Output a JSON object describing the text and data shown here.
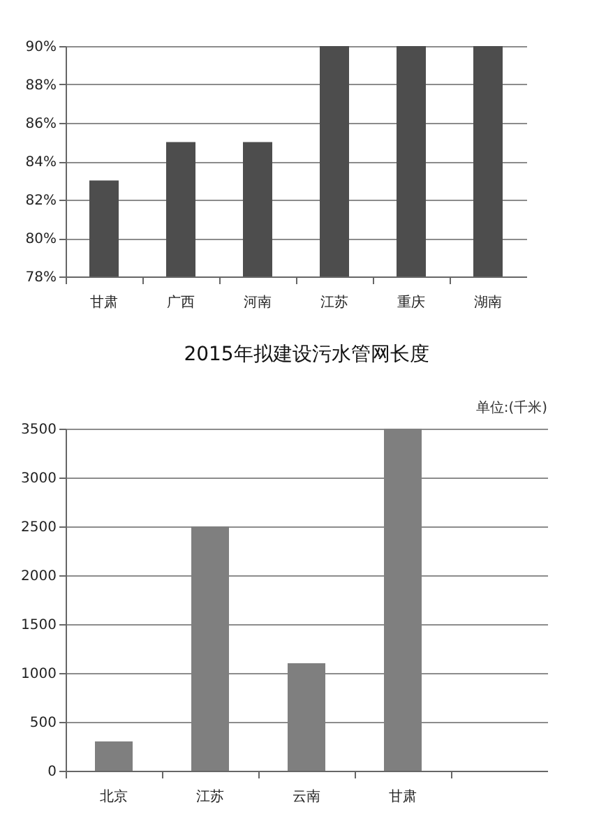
{
  "chart_data": [
    {
      "type": "bar",
      "categories": [
        "甘肃",
        "广西",
        "河南",
        "江苏",
        "重庆",
        "湖南"
      ],
      "values": [
        83,
        85,
        85,
        90,
        90,
        90
      ],
      "color": "#4d4d4d",
      "ylim": [
        78,
        90
      ],
      "yticks": [
        {
          "value": 78,
          "label": "78%"
        },
        {
          "value": 80,
          "label": "80%"
        },
        {
          "value": 82,
          "label": "82%"
        },
        {
          "value": 84,
          "label": "84%"
        },
        {
          "value": 86,
          "label": "86%"
        },
        {
          "value": 88,
          "label": "88%"
        },
        {
          "value": 90,
          "label": "90%"
        }
      ],
      "grid": "y"
    },
    {
      "type": "bar",
      "title": "2015年拟建设污水管网长度",
      "annotations": [
        "单位:(千米)"
      ],
      "categories": [
        "北京",
        "江苏",
        "云南",
        "甘肃",
        null
      ],
      "values": [
        300,
        2500,
        1100,
        3500,
        null
      ],
      "color": "#7f7f7f",
      "ylim": [
        0,
        3500
      ],
      "yticks": [
        0,
        500,
        1000,
        1500,
        2000,
        2500,
        3000,
        3500
      ],
      "grid": "y"
    }
  ]
}
